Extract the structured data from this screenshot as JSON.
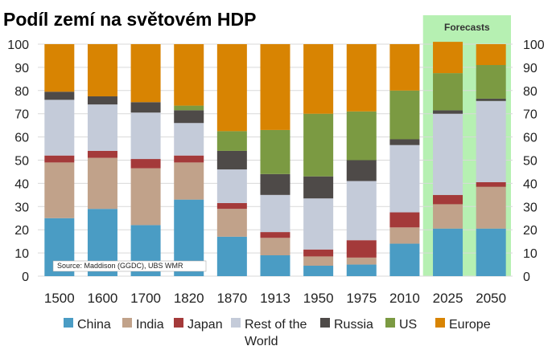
{
  "chart_data": {
    "type": "bar",
    "stacked": true,
    "title": "Podíl zemí na světovém HDP",
    "categories": [
      "1500",
      "1600",
      "1700",
      "1820",
      "1870",
      "1913",
      "1950",
      "1975",
      "2010",
      "2025",
      "2050"
    ],
    "ylim": [
      0,
      100
    ],
    "yticks": [
      "0",
      "10",
      "20",
      "30",
      "40",
      "50",
      "60",
      "70",
      "80",
      "90",
      "100"
    ],
    "right_yticks": [
      "100",
      "90",
      "80",
      "70",
      "60",
      "50",
      "40",
      "30",
      "20",
      "10",
      "0"
    ],
    "forecast_label": "Forecasts",
    "forecast_categories": [
      "2025",
      "2050"
    ],
    "source_note": "Source: Maddison (GGDC), UBS WMR",
    "legend_position": "bottom",
    "series": [
      {
        "name": "China",
        "color": "#4a9cc4",
        "values": [
          25,
          29,
          22,
          33,
          17,
          9,
          4.5,
          5,
          14,
          20.5,
          20.5
        ]
      },
      {
        "name": "India",
        "color": "#c1a28a",
        "values": [
          24,
          22,
          24.5,
          16,
          12,
          7.5,
          4,
          3,
          7,
          10.5,
          18
        ]
      },
      {
        "name": "Japan",
        "color": "#a43a3a",
        "values": [
          3,
          3,
          4,
          3,
          2.5,
          2.5,
          3,
          7.5,
          6.5,
          4,
          2
        ]
      },
      {
        "name": "Rest of the World",
        "color": "#c4cbd9",
        "values": [
          24,
          20,
          20,
          14,
          14.5,
          16,
          22,
          25.5,
          29,
          35,
          35
        ]
      },
      {
        "name": "Russia",
        "color": "#4e4a48",
        "values": [
          3.5,
          3.5,
          4.5,
          5.5,
          8,
          9,
          9.5,
          9,
          2.5,
          1.5,
          1
        ]
      },
      {
        "name": "US",
        "color": "#7b9a42",
        "values": [
          0,
          0,
          0,
          2,
          8.5,
          19,
          27,
          21,
          21,
          16,
          14.5
        ]
      },
      {
        "name": "Europe",
        "color": "#d88402",
        "values": [
          20.5,
          22.5,
          25,
          26.5,
          37.5,
          37,
          30,
          29,
          20,
          13.5,
          9
        ]
      }
    ],
    "legend_entries": [
      "China",
      "India",
      "Japan",
      "Rest of the",
      "World",
      "Russia",
      "US",
      "Europe"
    ],
    "forecast_band_color": "#b6f0b2"
  }
}
